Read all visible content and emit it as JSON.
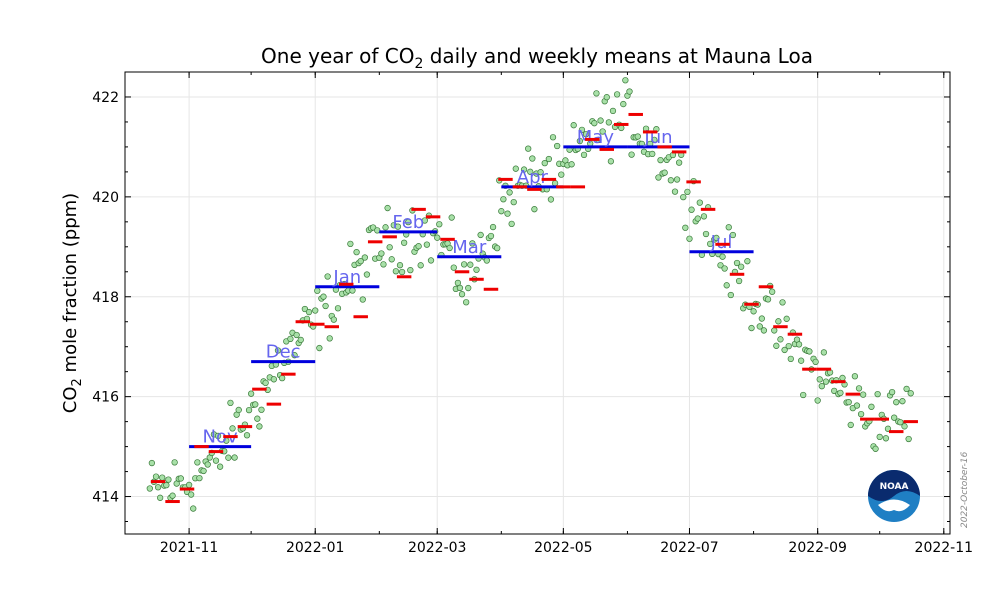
{
  "chart_data": {
    "type": "scatter",
    "title_main": "One year of CO",
    "title_sub": "2",
    "title_rest": " daily and weekly means at Mauna Loa",
    "ylabel_main": "CO",
    "ylabel_sub": "2",
    "ylabel_rest": " mole fraction (ppm)",
    "xlim": [
      "2021-10-01",
      "2022-11-04"
    ],
    "ylim": [
      413.25,
      422.5
    ],
    "yticks": [
      414,
      416,
      418,
      420,
      422
    ],
    "xticks": [
      "2021-11-01",
      "2022-01-01",
      "2022-03-01",
      "2022-05-01",
      "2022-07-01",
      "2022-09-01",
      "2022-11-01"
    ],
    "xtick_labels": [
      "2021-11",
      "2022-01",
      "2022-03",
      "2022-05",
      "2022-07",
      "2022-09",
      "2022-11"
    ],
    "grid": true,
    "credit": "2022-October-16",
    "logo_text": "NOAA",
    "colors": {
      "daily_fill": "#a8e0a8",
      "daily_edge": "#3a7a3a",
      "weekly": "#ee0000",
      "monthly": "#0000dd",
      "month_label": "#6666ee"
    },
    "series": [
      {
        "name": "daily",
        "anchors": [
          [
            "2021-10-13",
            414.1
          ],
          [
            "2021-11-01",
            414.3
          ],
          [
            "2021-11-15",
            414.8
          ],
          [
            "2021-12-01",
            415.7
          ],
          [
            "2021-12-15",
            416.7
          ],
          [
            "2022-01-01",
            417.5
          ],
          [
            "2022-01-15",
            418.2
          ],
          [
            "2022-02-01",
            419.0
          ],
          [
            "2022-02-15",
            419.3
          ],
          [
            "2022-03-01",
            419.2
          ],
          [
            "2022-03-15",
            418.2
          ],
          [
            "2022-04-01",
            419.8
          ],
          [
            "2022-04-15",
            420.4
          ],
          [
            "2022-05-01",
            420.4
          ],
          [
            "2022-05-15",
            421.4
          ],
          [
            "2022-06-01",
            421.6
          ],
          [
            "2022-06-15",
            421.0
          ],
          [
            "2022-07-01",
            420.1
          ],
          [
            "2022-07-15",
            418.9
          ],
          [
            "2022-08-01",
            418.0
          ],
          [
            "2022-08-15",
            417.2
          ],
          [
            "2022-09-01",
            416.5
          ],
          [
            "2022-09-15",
            416.0
          ],
          [
            "2022-10-01",
            415.5
          ],
          [
            "2022-10-16",
            415.7
          ]
        ],
        "noise_ppm": 0.55
      },
      {
        "name": "weekly",
        "points": [
          [
            "2021-10-17",
            414.3
          ],
          [
            "2021-10-24",
            413.9
          ],
          [
            "2021-10-31",
            414.15
          ],
          [
            "2021-11-07",
            415.0
          ],
          [
            "2021-11-14",
            414.9
          ],
          [
            "2021-11-21",
            415.2
          ],
          [
            "2021-11-28",
            415.4
          ],
          [
            "2021-12-05",
            416.15
          ],
          [
            "2021-12-12",
            415.85
          ],
          [
            "2021-12-19",
            416.45
          ],
          [
            "2021-12-26",
            417.5
          ],
          [
            "2022-01-02",
            417.45
          ],
          [
            "2022-01-09",
            417.4
          ],
          [
            "2022-01-16",
            418.25
          ],
          [
            "2022-01-23",
            417.6
          ],
          [
            "2022-01-30",
            419.1
          ],
          [
            "2022-02-06",
            419.2
          ],
          [
            "2022-02-13",
            418.4
          ],
          [
            "2022-02-20",
            419.75
          ],
          [
            "2022-02-27",
            419.6
          ],
          [
            "2022-03-06",
            419.15
          ],
          [
            "2022-03-13",
            418.5
          ],
          [
            "2022-03-20",
            418.35
          ],
          [
            "2022-03-27",
            418.15
          ],
          [
            "2022-04-03",
            420.35
          ],
          [
            "2022-04-10",
            420.2
          ],
          [
            "2022-04-17",
            420.15
          ],
          [
            "2022-04-24",
            420.35
          ],
          [
            "2022-05-01",
            420.2
          ],
          [
            "2022-05-08",
            420.2
          ],
          [
            "2022-05-15",
            421.15
          ],
          [
            "2022-05-22",
            420.95
          ],
          [
            "2022-05-29",
            421.45
          ],
          [
            "2022-06-05",
            421.65
          ],
          [
            "2022-06-12",
            421.3
          ],
          [
            "2022-06-19",
            421.0
          ],
          [
            "2022-06-26",
            420.9
          ],
          [
            "2022-07-03",
            420.3
          ],
          [
            "2022-07-10",
            419.75
          ],
          [
            "2022-07-17",
            419.05
          ],
          [
            "2022-07-24",
            418.45
          ],
          [
            "2022-07-31",
            417.85
          ],
          [
            "2022-08-07",
            418.2
          ],
          [
            "2022-08-14",
            417.4
          ],
          [
            "2022-08-21",
            417.25
          ],
          [
            "2022-08-28",
            416.55
          ],
          [
            "2022-09-04",
            416.55
          ],
          [
            "2022-09-11",
            416.3
          ],
          [
            "2022-09-18",
            416.05
          ],
          [
            "2022-09-25",
            415.55
          ],
          [
            "2022-10-02",
            415.55
          ],
          [
            "2022-10-09",
            415.3
          ],
          [
            "2022-10-16",
            415.5
          ]
        ]
      },
      {
        "name": "monthly",
        "points": [
          {
            "start": "2021-11-01",
            "end": "2021-12-01",
            "value": 415.0,
            "label": "Nov"
          },
          {
            "start": "2021-12-01",
            "end": "2022-01-01",
            "value": 416.7,
            "label": "Dec"
          },
          {
            "start": "2022-01-01",
            "end": "2022-02-01",
            "value": 418.2,
            "label": "Jan"
          },
          {
            "start": "2022-02-01",
            "end": "2022-03-01",
            "value": 419.3,
            "label": "Feb"
          },
          {
            "start": "2022-03-01",
            "end": "2022-04-01",
            "value": 418.8,
            "label": "Mar"
          },
          {
            "start": "2022-04-01",
            "end": "2022-05-01",
            "value": 420.2,
            "label": "Apr"
          },
          {
            "start": "2022-05-01",
            "end": "2022-06-01",
            "value": 421.0,
            "label": "May"
          },
          {
            "start": "2022-06-01",
            "end": "2022-07-01",
            "value": 421.0,
            "label": "Jun"
          },
          {
            "start": "2022-07-01",
            "end": "2022-08-01",
            "value": 418.9,
            "label": "Jul"
          }
        ]
      }
    ]
  }
}
